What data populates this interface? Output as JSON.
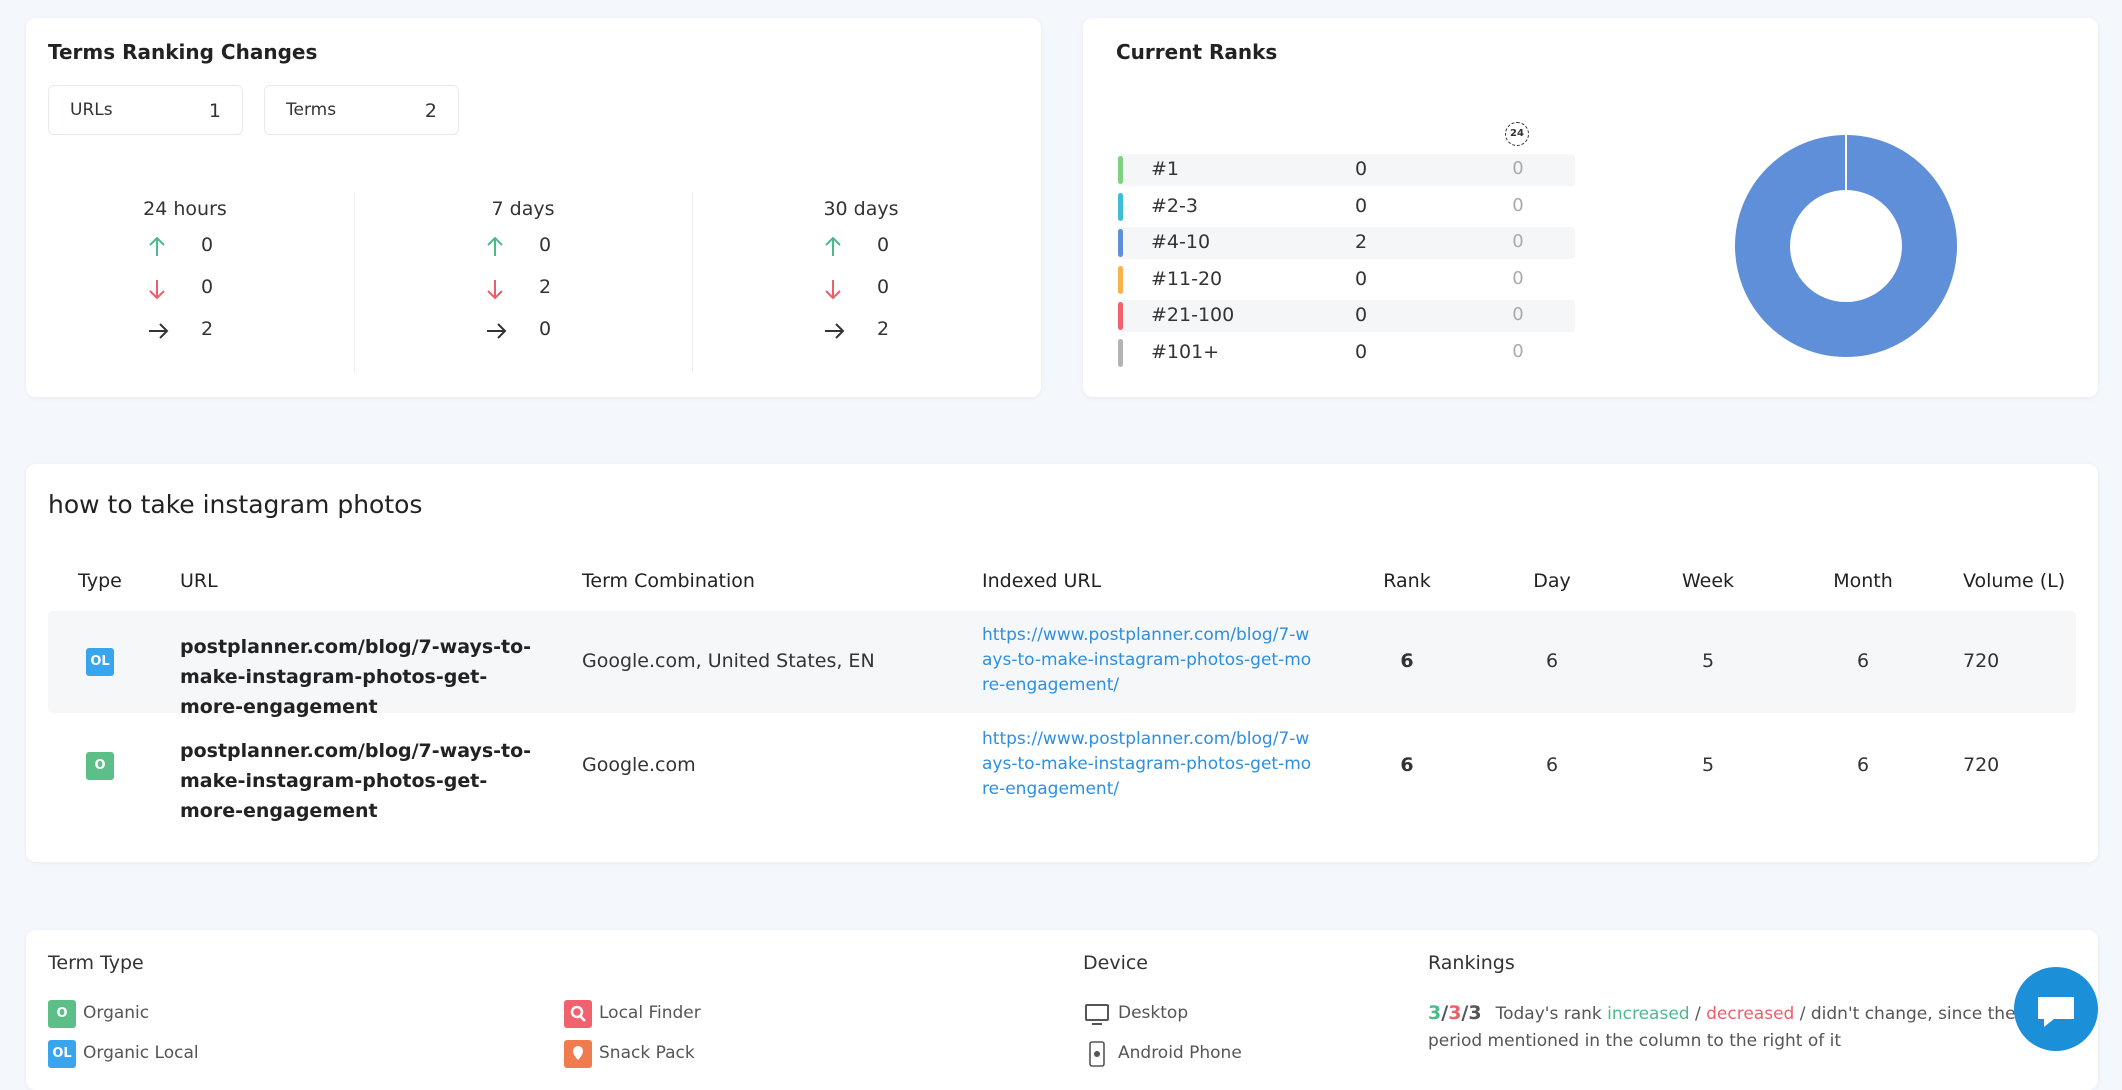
{
  "ranking_changes": {
    "title": "Terms Ranking Changes",
    "filters": [
      {
        "label": "URLs",
        "value": 1
      },
      {
        "label": "Terms",
        "value": 2
      }
    ],
    "periods": [
      {
        "label": "24 hours",
        "up": 0,
        "down": 0,
        "same": 2
      },
      {
        "label": "7 days",
        "up": 0,
        "down": 2,
        "same": 0
      },
      {
        "label": "30 days",
        "up": 0,
        "down": 0,
        "same": 2
      }
    ]
  },
  "current_ranks": {
    "title": "Current Ranks",
    "badge": "24",
    "rows": [
      {
        "label": "#1",
        "count": 0,
        "change": 0,
        "color": "#7ed17e"
      },
      {
        "label": "#2-3",
        "count": 0,
        "change": 0,
        "color": "#3fbcd8"
      },
      {
        "label": "#4-10",
        "count": 2,
        "change": 0,
        "color": "#5f8fd8"
      },
      {
        "label": "#11-20",
        "count": 0,
        "change": 0,
        "color": "#f7b24a"
      },
      {
        "label": "#21-100",
        "count": 0,
        "change": 0,
        "color": "#f0626e"
      },
      {
        "label": "#101+",
        "count": 0,
        "change": 0,
        "color": "#b3b3b3"
      }
    ]
  },
  "table": {
    "title": "how to take instagram photos",
    "columns": [
      "Type",
      "URL",
      "Term Combination",
      "Indexed URL",
      "Rank",
      "Day",
      "Week",
      "Month",
      "Volume (L)"
    ],
    "rows": [
      {
        "type": "OL",
        "url": "postplanner.com/blog/7-ways-to-make-instagram-photos-get-more-engagement",
        "term": "Google.com, United States, EN",
        "indexed_url": "https://www.postplanner.com/blog/7-ways-to-make-instagram-photos-get-more-engagement/",
        "rank": 6,
        "day": 6,
        "week": 5,
        "month": 6,
        "volume": 720
      },
      {
        "type": "O",
        "url": "postplanner.com/blog/7-ways-to-make-instagram-photos-get-more-engagement",
        "term": "Google.com",
        "indexed_url": "https://www.postplanner.com/blog/7-ways-to-make-instagram-photos-get-more-engagement/",
        "rank": 6,
        "day": 6,
        "week": 5,
        "month": 6,
        "volume": 720
      }
    ]
  },
  "legend": {
    "term_type": {
      "title": "Term Type",
      "items": [
        {
          "icon": "O",
          "label": "Organic"
        },
        {
          "icon": "OL",
          "label": "Organic Local"
        },
        {
          "label": "Local Finder"
        },
        {
          "label": "Snack Pack"
        }
      ]
    },
    "device": {
      "title": "Device",
      "items": [
        "Desktop",
        "Android Phone"
      ]
    },
    "rankings": {
      "title": "Rankings",
      "sample": [
        3,
        3,
        3
      ],
      "separator": "/",
      "parts": [
        "Today's rank ",
        "increased",
        " / ",
        "decreased",
        " / didn't change, since the period mentioned in the column to the right of it"
      ]
    }
  }
}
